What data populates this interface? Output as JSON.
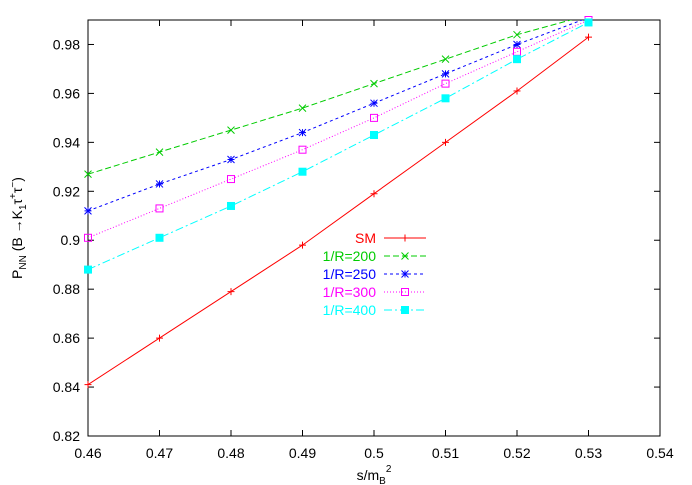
{
  "chart_data": {
    "type": "line",
    "xlabel_main": "s/m",
    "xlabel_sub": "B",
    "xlabel_sup": "2",
    "ylabel_main": "P",
    "ylabel_sub": "NN",
    "ylabel_paren_open": " (B →K",
    "ylabel_k_sub": "1",
    "ylabel_tau1": "τ",
    "ylabel_plus": "+",
    "ylabel_tau2": "τ",
    "ylabel_minus": "−",
    "ylabel_paren_close": ")",
    "xlim": [
      0.46,
      0.54
    ],
    "ylim": [
      0.82,
      0.99
    ],
    "xticks": [
      "0.46",
      "0.47",
      "0.48",
      "0.49",
      "0.5",
      "0.51",
      "0.52",
      "0.53",
      "0.54"
    ],
    "yticks": [
      "0.82",
      "0.84",
      "0.86",
      "0.88",
      "0.9",
      "0.92",
      "0.94",
      "0.96",
      "0.98"
    ],
    "grid": false,
    "legend_position": "center",
    "series": [
      {
        "name": "SM",
        "color": "#ff0000",
        "marker": "plus",
        "dash": "",
        "x": [
          0.46,
          0.47,
          0.48,
          0.49,
          0.5,
          0.51,
          0.52,
          0.53
        ],
        "y": [
          0.841,
          0.86,
          0.879,
          0.898,
          0.919,
          0.94,
          0.961,
          0.983
        ]
      },
      {
        "name": "1/R=200",
        "color": "#00cc00",
        "marker": "cross",
        "dash": "6,3",
        "x": [
          0.46,
          0.47,
          0.48,
          0.49,
          0.5,
          0.51,
          0.52,
          0.53
        ],
        "y": [
          0.927,
          0.936,
          0.945,
          0.954,
          0.964,
          0.974,
          0.984,
          0.992
        ]
      },
      {
        "name": "1/R=250",
        "color": "#0000ff",
        "marker": "star",
        "dash": "3,3",
        "x": [
          0.46,
          0.47,
          0.48,
          0.49,
          0.5,
          0.51,
          0.52,
          0.53
        ],
        "y": [
          0.912,
          0.923,
          0.933,
          0.944,
          0.956,
          0.968,
          0.98,
          0.991
        ]
      },
      {
        "name": "1/R=300",
        "color": "#ff00ff",
        "marker": "square-open",
        "dash": "1,2",
        "x": [
          0.46,
          0.47,
          0.48,
          0.49,
          0.5,
          0.51,
          0.52,
          0.53
        ],
        "y": [
          0.901,
          0.913,
          0.925,
          0.937,
          0.95,
          0.964,
          0.977,
          0.99
        ]
      },
      {
        "name": "1/R=400",
        "color": "#00ffff",
        "marker": "square-filled",
        "dash": "8,3,2,3",
        "x": [
          0.46,
          0.47,
          0.48,
          0.49,
          0.5,
          0.51,
          0.52,
          0.53
        ],
        "y": [
          0.888,
          0.901,
          0.914,
          0.928,
          0.943,
          0.958,
          0.974,
          0.989
        ]
      }
    ]
  }
}
